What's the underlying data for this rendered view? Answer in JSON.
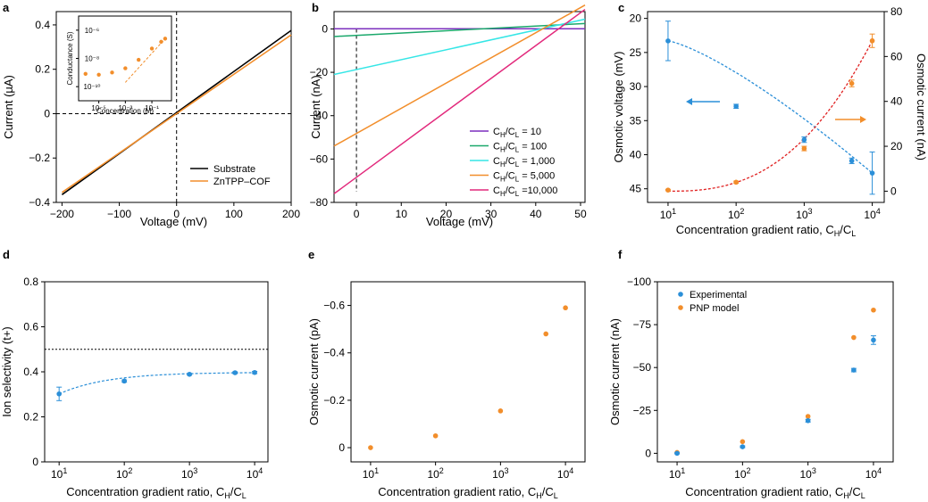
{
  "colors": {
    "black": "#000000",
    "orange": "#f28e2b",
    "purple": "#7b2fbe",
    "green": "#1aa86b",
    "cyan": "#35e6e6",
    "pink": "#e2297c",
    "blue": "#2b8fd8",
    "red": "#e02020"
  },
  "chart_data": [
    {
      "panel": "a",
      "type": "line",
      "xlabel": "Voltage (mV)",
      "ylabel": "Current (µA)",
      "xlim": [
        -210,
        200
      ],
      "ylim": [
        -0.4,
        0.46
      ],
      "xticks": [
        -200,
        -100,
        0,
        100,
        200
      ],
      "yticks": [
        -0.4,
        -0.2,
        0,
        0.2,
        0.4
      ],
      "series": [
        {
          "name": "Substrate",
          "color": "black",
          "x": [
            -200,
            200
          ],
          "y": [
            -0.365,
            0.375
          ]
        },
        {
          "name": "ZnTPP–COF",
          "color": "orange",
          "x": [
            -200,
            200
          ],
          "y": [
            -0.355,
            0.355
          ]
        }
      ],
      "inset": {
        "type": "scatter",
        "xlabel": "Concentration (M)",
        "ylabel": "Conductance (S)",
        "xscale": "log",
        "yscale": "log",
        "xticks": [
          1e-05,
          0.001,
          0.1
        ],
        "xtick_labels": [
          "10⁻⁵",
          "10⁻³",
          "10⁻¹"
        ],
        "yticks": [
          1e-10,
          1e-08,
          1e-06
        ],
        "ytick_labels": [
          "10⁻¹⁰",
          "10⁻⁸",
          "10⁻⁶"
        ],
        "x": [
          1e-06,
          1e-05,
          0.0001,
          0.001,
          0.01,
          0.1,
          0.5,
          1
        ],
        "y": [
          8e-10,
          7e-10,
          1e-09,
          2e-09,
          8e-09,
          5e-08,
          1.5e-07,
          2.5e-07
        ],
        "fit_x": [
          0.001,
          1
        ],
        "fit_y": [
          2e-10,
          2.5e-07
        ]
      }
    },
    {
      "panel": "b",
      "type": "line",
      "xlabel": "Voltage (mV)",
      "ylabel": "Current (nA)",
      "xlim": [
        -5,
        51
      ],
      "ylim": [
        -80,
        8
      ],
      "xticks": [
        0,
        10,
        20,
        30,
        40,
        50
      ],
      "yticks": [
        -80,
        -60,
        -40,
        -20,
        0
      ],
      "series": [
        {
          "name": "C_H/C_L = 10",
          "color": "purple",
          "x": [
            -5,
            51
          ],
          "y": [
            0.1,
            0.1
          ]
        },
        {
          "name": "C_H/C_L = 100",
          "color": "green",
          "x": [
            -5,
            51
          ],
          "y": [
            -3.5,
            2.5
          ]
        },
        {
          "name": "C_H/C_L = 1,000",
          "color": "cyan",
          "x": [
            -5,
            51
          ],
          "y": [
            -21,
            4.5
          ]
        },
        {
          "name": "C_H/C_L = 5,000",
          "color": "orange",
          "x": [
            -5,
            51
          ],
          "y": [
            -54,
            11
          ]
        },
        {
          "name": "C_H/C_L =10,000",
          "color": "pink",
          "x": [
            -5,
            51
          ],
          "y": [
            -76,
            9
          ]
        }
      ]
    },
    {
      "panel": "c",
      "type": "scatter",
      "xlabel": "Concentration gradient ratio, C_H/C_L",
      "ylabel": "Osmotic voltage (mV)",
      "ylabel_right": "Osmotic current (nA)",
      "xscale": "log",
      "xlim": [
        5,
        15000
      ],
      "ylim": [
        47,
        19
      ],
      "yticks": [
        20,
        25,
        30,
        35,
        40,
        45
      ],
      "ylim_right": [
        -5,
        80
      ],
      "yticks_right": [
        0,
        20,
        40,
        60,
        80
      ],
      "series": [
        {
          "name": "Osmotic voltage",
          "color": "blue",
          "axis": "left",
          "x": [
            10,
            100,
            1000,
            5000,
            10000
          ],
          "y": [
            23.3,
            32.9,
            37.8,
            40.9,
            42.7
          ],
          "yerr": [
            2.9,
            0.3,
            0.4,
            0.4,
            3.1
          ]
        },
        {
          "name": "Osmotic current",
          "color": "orange",
          "axis": "right",
          "x": [
            10,
            100,
            1000,
            5000,
            10000
          ],
          "y": [
            0.5,
            4,
            19,
            48,
            67
          ],
          "yerr": [
            0.3,
            0.5,
            1,
            1.5,
            3
          ]
        }
      ]
    },
    {
      "panel": "d",
      "type": "scatter",
      "xlabel": "Concentration gradient ratio, C_H/C_L",
      "ylabel": "Ion selectivity (t+)",
      "xscale": "log",
      "xlim": [
        6,
        16000
      ],
      "ylim": [
        0,
        0.8
      ],
      "yticks": [
        0,
        0.2,
        0.4,
        0.6,
        0.8
      ],
      "reference_line": 0.5,
      "series": [
        {
          "name": "Ion selectivity",
          "color": "blue",
          "x": [
            10,
            100,
            1000,
            5000,
            10000
          ],
          "y": [
            0.302,
            0.359,
            0.389,
            0.396,
            0.397
          ],
          "yerr": [
            0.03,
            0.005,
            0.004,
            0.004,
            0.005
          ]
        }
      ]
    },
    {
      "panel": "e",
      "type": "scatter",
      "xlabel": "Concentration gradient ratio, C_H/C_L",
      "ylabel": "Osmotic current (pA)",
      "xscale": "log",
      "xlim": [
        5,
        20000
      ],
      "ylim": [
        0.06,
        -0.7
      ],
      "yticks": [
        0,
        -0.2,
        -0.4,
        -0.6
      ],
      "series": [
        {
          "name": "Osmotic current",
          "color": "orange",
          "x": [
            10,
            100,
            1000,
            5000,
            10000
          ],
          "y": [
            0,
            -0.05,
            -0.155,
            -0.48,
            -0.59
          ]
        }
      ]
    },
    {
      "panel": "f",
      "type": "scatter",
      "xlabel": "Concentration gradient ratio, C_H/C_L",
      "ylabel": "Osmotic current (nA)",
      "xscale": "log",
      "xlim": [
        5,
        20000
      ],
      "ylim": [
        5,
        -100
      ],
      "yticks": [
        0,
        -25,
        -50,
        -75,
        -100
      ],
      "series": [
        {
          "name": "Experimental",
          "color": "blue",
          "x": [
            10,
            100,
            1000,
            5000,
            10000
          ],
          "y": [
            0,
            -3.8,
            -19,
            -48.5,
            -66
          ],
          "yerr": [
            0.3,
            0.5,
            0.8,
            1,
            2.5
          ]
        },
        {
          "name": "PNP model",
          "color": "orange",
          "x": [
            10,
            100,
            1000,
            5000,
            10000
          ],
          "y": [
            -0.5,
            -6.8,
            -21.5,
            -67.5,
            -83.5
          ]
        }
      ]
    }
  ]
}
